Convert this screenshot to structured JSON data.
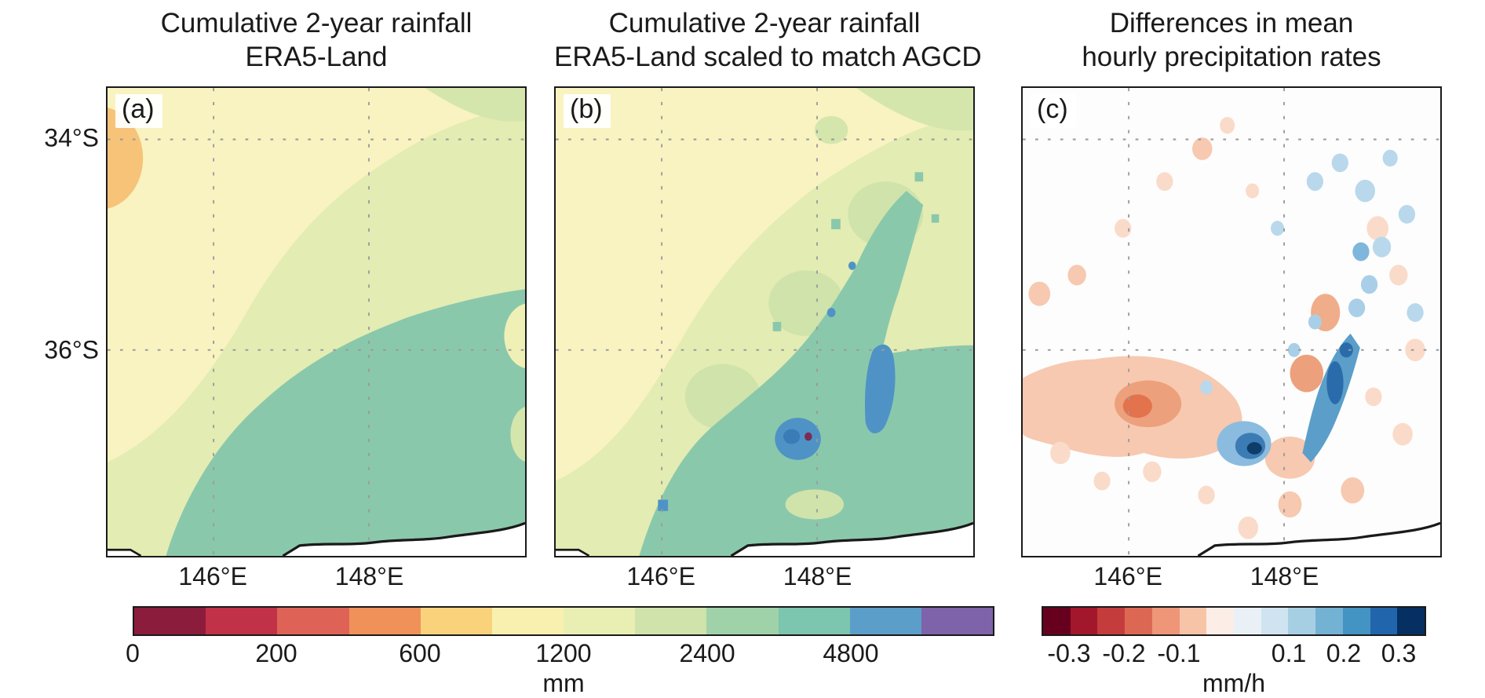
{
  "panels": [
    {
      "label": "(a)",
      "title_line1": "Cumulative 2-year rainfall",
      "title_line2": "ERA5-Land",
      "x_ticks": [
        "146°E",
        "148°E"
      ]
    },
    {
      "label": "(b)",
      "title_line1": "Cumulative 2-year rainfall",
      "title_line2": "ERA5-Land scaled to match AGCD",
      "x_ticks": [
        "146°E",
        "148°E"
      ]
    },
    {
      "label": "(c)",
      "title_line1": "Differences in mean",
      "title_line2": "hourly precipitation rates",
      "x_ticks": [
        "146°E",
        "148°E"
      ]
    }
  ],
  "y_axis": {
    "tick_1": "34°S",
    "tick_2": "36°S"
  },
  "colorbars": {
    "rainfall": {
      "label": "mm",
      "ticks": [
        "0",
        "200",
        "600",
        "1200",
        "2400",
        "4800"
      ],
      "tick_positions": [
        0,
        0.1667,
        0.3333,
        0.5,
        0.6667,
        0.8333
      ],
      "colors": [
        "#8c1c3b",
        "#c13147",
        "#de6356",
        "#ef9158",
        "#fbd27c",
        "#f9f0b0",
        "#e9efb3",
        "#cfe3ab",
        "#9fd2a8",
        "#7cc5ae",
        "#5b9ec9",
        "#7e62aa"
      ]
    },
    "difference": {
      "label": "mm/h",
      "ticks": [
        "-0.3",
        "-0.2",
        "-0.1",
        "0.1",
        "0.2",
        "0.3"
      ],
      "tick_positions": [
        0.0714,
        0.2143,
        0.3571,
        0.6429,
        0.7857,
        0.9286
      ],
      "colors": [
        "#67001f",
        "#a3172c",
        "#c43c3c",
        "#dc6853",
        "#ee9677",
        "#f8c4a8",
        "#fceee6",
        "#e9f1f7",
        "#cfe3f0",
        "#a6cfe3",
        "#74b2d4",
        "#4393c3",
        "#2166ac",
        "#053061"
      ]
    }
  },
  "chart_data": [
    {
      "type": "heatmap",
      "panel": "(a)",
      "title": "Cumulative 2-year rainfall ERA5-Land",
      "x_axis": {
        "ticks": [
          "146°E",
          "148°E"
        ]
      },
      "y_axis": {
        "ticks": [
          "34°S",
          "36°S"
        ]
      },
      "units": "mm",
      "color_levels": [
        0,
        100,
        200,
        400,
        600,
        900,
        1200,
        1800,
        2400,
        3600,
        4800,
        7200,
        9600
      ],
      "colorbar_ticks": [
        0,
        200,
        600,
        1200,
        2400,
        4800
      ],
      "grid": "dotted",
      "legend_position": "bottom-shared-with-b",
      "regions": [
        {
          "area": "small patch at west edge near 34°S",
          "value_mm": "600-900"
        },
        {
          "area": "smooth pale background over northwest and north",
          "value_mm": "900-1200"
        },
        {
          "area": "broad diagonal band from southwest to northeast",
          "value_mm": "1200-2400"
        },
        {
          "area": "broad smooth southeast half of domain",
          "value_mm": "2400-4800"
        }
      ]
    },
    {
      "type": "heatmap",
      "panel": "(b)",
      "title": "Cumulative 2-year rainfall ERA5-Land scaled to match AGCD",
      "x_axis": {
        "ticks": [
          "146°E",
          "148°E"
        ]
      },
      "y_axis": {
        "ticks": [
          "34°S",
          "36°S"
        ]
      },
      "units": "mm",
      "color_levels": [
        0,
        100,
        200,
        400,
        600,
        900,
        1200,
        1800,
        2400,
        3600,
        4800,
        7200,
        9600
      ],
      "colorbar_ticks": [
        0,
        200,
        600,
        1200,
        2400,
        4800
      ],
      "grid": "dotted",
      "legend_position": "bottom-shared-with-a",
      "regions": [
        {
          "area": "pale background over west and north",
          "value_mm": "900-1200"
        },
        {
          "area": "diagonal band from southwest to northeast, finer texture than (a)",
          "value_mm": "1200-2400"
        },
        {
          "area": "jagged high-rainfall area over southeast ranges",
          "value_mm": "2400-4800"
        },
        {
          "area": "localized blue maxima: vertical streak near 148°E and blob near centre-south",
          "value_mm": "4800-7200"
        },
        {
          "area": "single dark spot at edge of central blue blob",
          "value_mm": ">7200"
        }
      ]
    },
    {
      "type": "heatmap",
      "panel": "(c)",
      "title": "Differences in mean hourly precipitation rates",
      "x_axis": {
        "ticks": [
          "146°E",
          "148°E"
        ]
      },
      "y_axis": {
        "ticks": [
          "34°S",
          "36°S"
        ]
      },
      "units": "mm/h",
      "color_levels": [
        -0.35,
        -0.3,
        -0.25,
        -0.2,
        -0.15,
        -0.1,
        -0.05,
        0.05,
        0.1,
        0.15,
        0.2,
        0.25,
        0.3,
        0.35
      ],
      "colorbar_ticks": [
        -0.3,
        -0.2,
        -0.1,
        0.1,
        0.2,
        0.3
      ],
      "grid": "dotted",
      "legend_position": "bottom-own",
      "regions": [
        {
          "area": "blotchy patch centre-west extending to west edge",
          "value_mm_h": "-0.1 to -0.2 with core near -0.2"
        },
        {
          "area": "scattered light patches north, east and south",
          "value_mm_h": "-0.05 to -0.1"
        },
        {
          "area": "compact cluster south of centre with dark core",
          "value_mm_h": "+0.2 to +0.35"
        },
        {
          "area": "northeast-trending streak just west of 148°E",
          "value_mm_h": "+0.1 to +0.25"
        },
        {
          "area": "light speckle across northeast quadrant",
          "value_mm_h": "+0.05 to +0.1"
        }
      ]
    }
  ]
}
